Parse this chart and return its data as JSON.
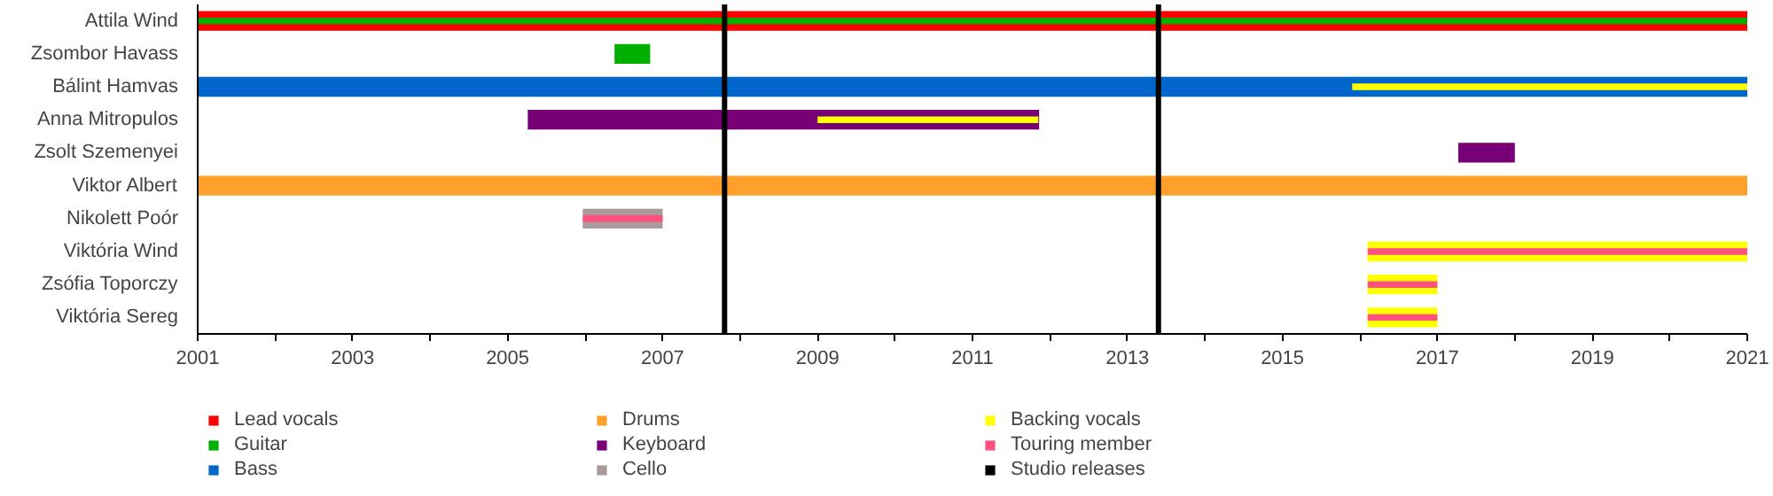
{
  "chart_data": {
    "type": "bar",
    "orientation": "horizontal",
    "stacked": false,
    "categories": [
      "Attila Wind",
      "Zsombor Havass",
      "Bálint Hamvas",
      "Anna Mitropulos",
      "Zsolt Szemenyei",
      "Viktor Albert",
      "Nikolett Poór",
      "Viktória Wind",
      "Zsófia Toporczy",
      "Viktória Sereg"
    ],
    "series": [
      {
        "name": "Lead vocals",
        "color": "#ff0000",
        "values": [
          20,
          null,
          null,
          null,
          null,
          null,
          null,
          null,
          null,
          null
        ],
        "base": [
          2001,
          null,
          null,
          null,
          null,
          null,
          null,
          null,
          null,
          null
        ]
      },
      {
        "name": "Guitar",
        "color": "#00b000",
        "values": [
          20,
          0.46,
          null,
          null,
          null,
          null,
          null,
          null,
          null,
          null
        ],
        "base": [
          2001,
          2006.38,
          null,
          null,
          null,
          null,
          null,
          null,
          null,
          null
        ]
      },
      {
        "name": "Bass",
        "color": "#0066cc",
        "values": [
          null,
          null,
          20,
          null,
          null,
          null,
          null,
          null,
          null,
          null
        ],
        "base": [
          null,
          null,
          2001,
          null,
          null,
          null,
          null,
          null,
          null,
          null
        ]
      },
      {
        "name": "Drums",
        "color": "#ffa02a",
        "values": [
          null,
          null,
          null,
          null,
          null,
          20,
          null,
          null,
          null,
          null
        ],
        "base": [
          null,
          null,
          null,
          null,
          null,
          2001,
          null,
          null,
          null,
          null
        ]
      },
      {
        "name": "Keyboard",
        "color": "#770077",
        "values": [
          null,
          null,
          null,
          6.6,
          0.73,
          null,
          null,
          null,
          null,
          null
        ],
        "base": [
          null,
          null,
          null,
          2005.26,
          2017.27,
          null,
          null,
          null,
          null,
          null
        ]
      },
      {
        "name": "Cello",
        "color": "#aa9999",
        "values": [
          null,
          null,
          null,
          null,
          null,
          null,
          1.03,
          null,
          null,
          null
        ],
        "base": [
          null,
          null,
          null,
          null,
          null,
          null,
          2005.97,
          null,
          null,
          null
        ]
      },
      {
        "name": "Backing vocals",
        "color": "#ffff00",
        "values": [
          null,
          null,
          5.1,
          2.85,
          null,
          null,
          null,
          4.9,
          0.9,
          0.9
        ],
        "base": [
          null,
          null,
          2015.9,
          2009.0,
          null,
          null,
          null,
          2016.1,
          2016.1,
          2016.1
        ]
      },
      {
        "name": "Touring member",
        "color": "#ff5080",
        "values": [
          null,
          null,
          null,
          null,
          null,
          null,
          1.03,
          4.9,
          0.9,
          0.9
        ],
        "base": [
          null,
          null,
          null,
          null,
          null,
          null,
          2005.97,
          2016.1,
          2016.1,
          2016.1
        ]
      }
    ],
    "ref_lines": [
      {
        "axis": "x",
        "value": 2007.8,
        "label": "Studio releases",
        "color": "#000000"
      },
      {
        "axis": "x",
        "value": 2013.4,
        "color": "#000000"
      }
    ],
    "xlim": [
      2001,
      2021
    ],
    "xticks": [
      2001,
      {
        "value": 2002,
        "label": null
      },
      2003,
      {
        "value": 2004,
        "label": null
      },
      2005,
      {
        "value": 2006,
        "label": null
      },
      2007,
      {
        "value": 2008,
        "label": null
      },
      2009,
      {
        "value": 2010,
        "label": null
      },
      2011,
      {
        "value": 2012,
        "label": null
      },
      2013,
      {
        "value": 2014,
        "label": null
      },
      2015,
      {
        "value": 2016,
        "label": null
      },
      2017,
      {
        "value": 2018,
        "label": null
      },
      2019,
      {
        "value": 2020,
        "label": null
      },
      2021
    ],
    "grid": false,
    "legend": "bottom"
  }
}
